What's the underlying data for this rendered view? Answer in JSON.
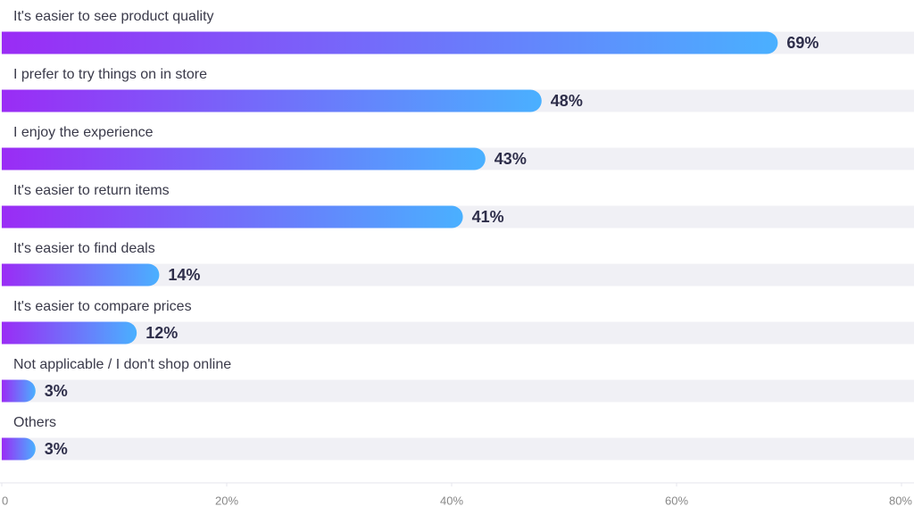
{
  "chart_data": {
    "type": "bar",
    "orientation": "horizontal",
    "categories": [
      "It's easier to see product quality",
      "I prefer to try things on in store",
      "I enjoy the experience",
      "It's easier to return items",
      "It's easier to find deals",
      "It's easier to compare prices",
      "Not applicable / I don't shop online",
      "Others"
    ],
    "values": [
      69,
      48,
      43,
      41,
      14,
      12,
      3,
      3
    ],
    "value_labels": [
      "69%",
      "48%",
      "43%",
      "41%",
      "14%",
      "12%",
      "3%",
      "3%"
    ],
    "color_start": "#9a2cf5",
    "color_end": "#4ab0ff",
    "track_color": "#f0f0f5",
    "xlim": [
      0,
      80
    ],
    "xticks": [
      0,
      {
        "value": 20,
        "label": "20%"
      },
      {
        "value": 40,
        "label": "40%"
      },
      {
        "value": 60,
        "label": "60%"
      },
      {
        "value": 80,
        "label": "80%"
      }
    ]
  }
}
